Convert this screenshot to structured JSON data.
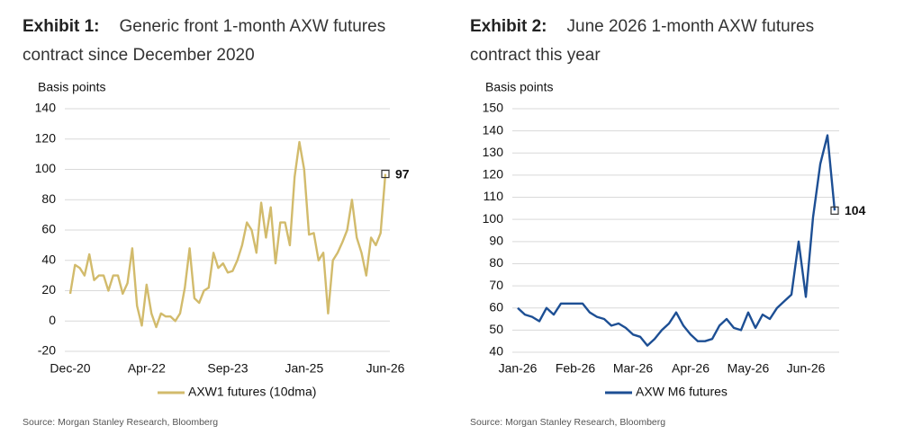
{
  "chart_data": [
    {
      "type": "line",
      "exhibit": "Exhibit 1:",
      "title": "Generic front 1-month AXW futures contract since December 2020",
      "y_label": "Basis points",
      "source": "Source: Morgan Stanley Research, Bloomberg",
      "end_label": true,
      "grid": true,
      "categories": [
        "Dec-20",
        null,
        null,
        null,
        null,
        null,
        null,
        null,
        null,
        null,
        null,
        null,
        null,
        null,
        null,
        null,
        "Apr-22",
        null,
        null,
        null,
        null,
        null,
        null,
        null,
        null,
        null,
        null,
        null,
        null,
        null,
        null,
        null,
        null,
        "Sep-23",
        null,
        null,
        null,
        null,
        null,
        null,
        null,
        null,
        null,
        null,
        null,
        null,
        null,
        null,
        null,
        "Jan-25",
        null,
        null,
        null,
        null,
        null,
        null,
        null,
        null,
        null,
        null,
        null,
        null,
        null,
        null,
        null,
        null,
        "Jun-26"
      ],
      "series": [
        {
          "name": "AXW1 futures (10dma)",
          "color": "#d2bb6c",
          "values": [
            18,
            37,
            35,
            30,
            44,
            27,
            30,
            30,
            20,
            30,
            30,
            18,
            25,
            48,
            10,
            -3,
            24,
            5,
            -4,
            5,
            3,
            3,
            0,
            5,
            22,
            48,
            15,
            12,
            20,
            22,
            45,
            35,
            38,
            32,
            33,
            40,
            50,
            65,
            60,
            45,
            78,
            55,
            75,
            38,
            65,
            65,
            50,
            95,
            118,
            100,
            57,
            58,
            40,
            45,
            5,
            40,
            45,
            52,
            60,
            80,
            55,
            45,
            30,
            55,
            50,
            58,
            97
          ]
        }
      ],
      "ylim": [
        -20,
        140
      ],
      "yticks": [
        -20,
        0,
        20,
        40,
        60,
        80,
        100,
        120,
        140
      ]
    },
    {
      "type": "line",
      "exhibit": "Exhibit 2:",
      "title": "June 2026 1-month AXW futures contract this year",
      "y_label": "Basis points",
      "source": "Source: Morgan Stanley Research, Bloomberg",
      "end_label": true,
      "grid": true,
      "categories": [
        "Jan-26",
        null,
        null,
        null,
        null,
        null,
        null,
        null,
        "Feb-26",
        null,
        null,
        null,
        null,
        null,
        null,
        null,
        "Mar-26",
        null,
        null,
        null,
        null,
        null,
        null,
        null,
        "Apr-26",
        null,
        null,
        null,
        null,
        null,
        null,
        null,
        "May-26",
        null,
        null,
        null,
        null,
        null,
        null,
        null,
        "Jun-26",
        null,
        null,
        null,
        null
      ],
      "series": [
        {
          "name": "AXW M6 futures",
          "color": "#1d4f94",
          "values": [
            60,
            57,
            56,
            54,
            60,
            57,
            62,
            62,
            62,
            62,
            58,
            56,
            55,
            52,
            53,
            51,
            48,
            47,
            43,
            46,
            50,
            53,
            58,
            52,
            48,
            45,
            45,
            46,
            52,
            55,
            51,
            50,
            58,
            51,
            57,
            55,
            60,
            63,
            66,
            90,
            65,
            101,
            125,
            138,
            104
          ]
        }
      ],
      "ylim": [
        40,
        150
      ],
      "yticks": [
        40,
        50,
        60,
        70,
        80,
        90,
        100,
        110,
        120,
        130,
        140,
        150
      ]
    }
  ]
}
